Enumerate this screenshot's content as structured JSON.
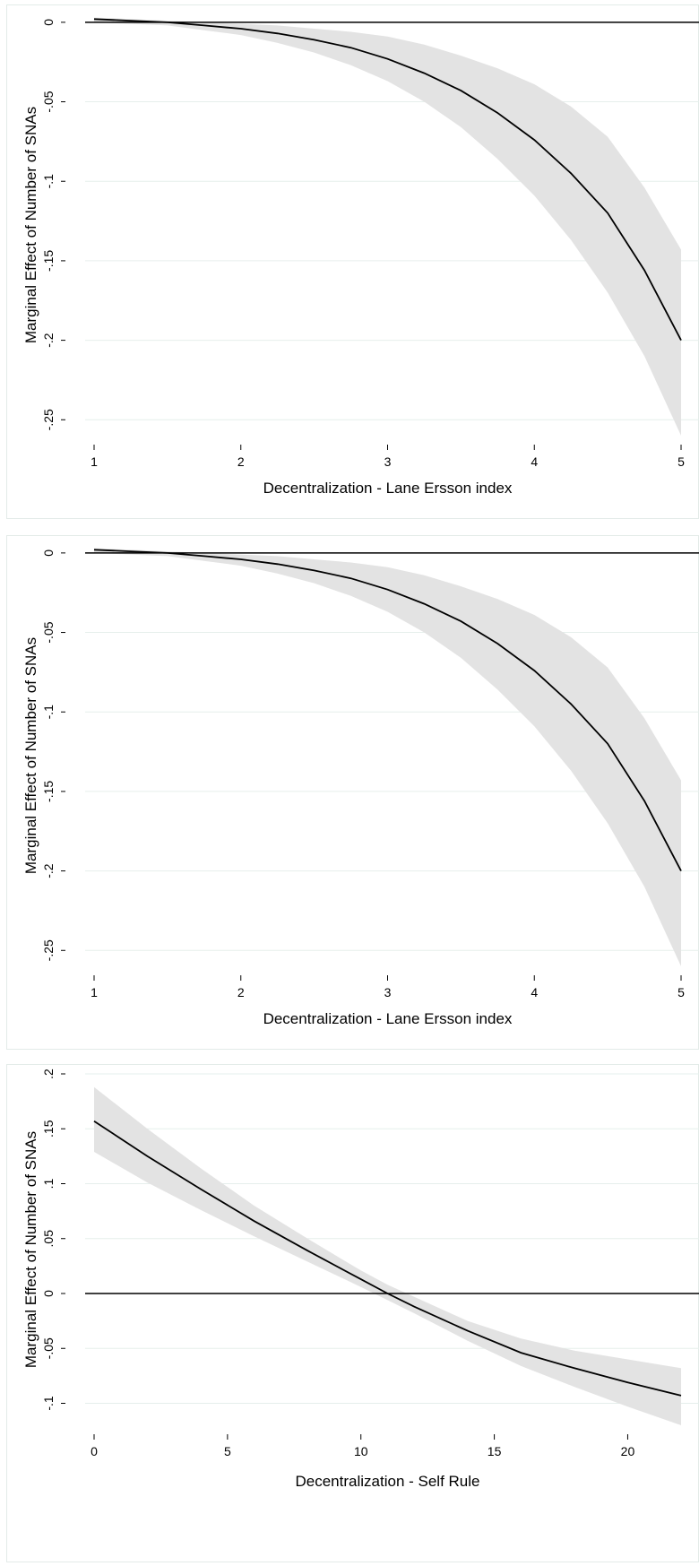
{
  "chart_data": [
    {
      "type": "line",
      "xlabel": "Decentralization - Lane Ersson index",
      "ylabel": "Marginal Effect of Number of SNAs",
      "xlim": [
        1,
        5
      ],
      "ylim": [
        -0.26,
        0.005
      ],
      "xticks": [
        1,
        2,
        3,
        4,
        5
      ],
      "xtick_labels": [
        "1",
        "2",
        "3",
        "4",
        "5"
      ],
      "yticks": [
        0,
        -0.05,
        -0.1,
        -0.15,
        -0.2,
        -0.25
      ],
      "ytick_labels": [
        "0",
        "-.05",
        "-.1",
        "-.15",
        "-.2",
        "-.25"
      ],
      "grid": "horizontal",
      "reference_line": 0,
      "x": [
        1,
        1.25,
        1.5,
        1.75,
        2,
        2.25,
        2.5,
        2.75,
        3,
        3.25,
        3.5,
        3.75,
        4,
        4.25,
        4.5,
        4.75,
        5
      ],
      "estimate": [
        0.002,
        0.001,
        0.0,
        -0.002,
        -0.004,
        -0.007,
        -0.011,
        -0.016,
        -0.023,
        -0.032,
        -0.043,
        -0.057,
        -0.074,
        -0.095,
        -0.12,
        -0.156,
        -0.2
      ],
      "ci_lower": [
        0.0,
        -0.001,
        -0.002,
        -0.005,
        -0.008,
        -0.013,
        -0.019,
        -0.027,
        -0.037,
        -0.05,
        -0.066,
        -0.086,
        -0.109,
        -0.137,
        -0.17,
        -0.21,
        -0.26
      ],
      "ci_upper": [
        0.003,
        0.002,
        0.001,
        0.0,
        -0.001,
        -0.002,
        -0.004,
        -0.006,
        -0.009,
        -0.014,
        -0.021,
        -0.029,
        -0.039,
        -0.053,
        -0.072,
        -0.104,
        -0.143
      ]
    },
    {
      "type": "line",
      "xlabel": "Decentralization - Lane Ersson index",
      "ylabel": "Marginal Effect of Number of SNAs",
      "xlim": [
        1,
        5
      ],
      "ylim": [
        -0.26,
        0.005
      ],
      "xticks": [
        1,
        2,
        3,
        4,
        5
      ],
      "xtick_labels": [
        "1",
        "2",
        "3",
        "4",
        "5"
      ],
      "yticks": [
        0,
        -0.05,
        -0.1,
        -0.15,
        -0.2,
        -0.25
      ],
      "ytick_labels": [
        "0",
        "-.05",
        "-.1",
        "-.15",
        "-.2",
        "-.25"
      ],
      "grid": "horizontal",
      "reference_line": 0,
      "x": [
        1,
        1.25,
        1.5,
        1.75,
        2,
        2.25,
        2.5,
        2.75,
        3,
        3.25,
        3.5,
        3.75,
        4,
        4.25,
        4.5,
        4.75,
        5
      ],
      "estimate": [
        0.002,
        0.001,
        0.0,
        -0.002,
        -0.004,
        -0.007,
        -0.011,
        -0.016,
        -0.023,
        -0.032,
        -0.043,
        -0.057,
        -0.074,
        -0.095,
        -0.12,
        -0.156,
        -0.2
      ],
      "ci_lower": [
        0.0,
        -0.001,
        -0.002,
        -0.005,
        -0.008,
        -0.013,
        -0.019,
        -0.027,
        -0.037,
        -0.05,
        -0.066,
        -0.086,
        -0.109,
        -0.137,
        -0.17,
        -0.21,
        -0.26
      ],
      "ci_upper": [
        0.003,
        0.002,
        0.001,
        0.0,
        -0.001,
        -0.002,
        -0.004,
        -0.006,
        -0.009,
        -0.014,
        -0.021,
        -0.029,
        -0.039,
        -0.053,
        -0.072,
        -0.104,
        -0.143
      ]
    },
    {
      "type": "line",
      "xlabel": "Decentralization - Self Rule",
      "ylabel": "Marginal Effect of Number of SNAs",
      "xlim": [
        0,
        22
      ],
      "ylim": [
        -0.12,
        0.2
      ],
      "xticks": [
        0,
        5,
        10,
        15,
        20
      ],
      "xtick_labels": [
        "0",
        "5",
        "10",
        "15",
        "20"
      ],
      "yticks": [
        0.2,
        0.15,
        0.1,
        0.05,
        0,
        -0.05,
        -0.1
      ],
      "ytick_labels": [
        ".2",
        ".15",
        ".1",
        ".05",
        "0",
        "-.05",
        "-.1"
      ],
      "grid": "horizontal",
      "reference_line": 0,
      "x": [
        0,
        2,
        4,
        6,
        8,
        10,
        11,
        12,
        14,
        16,
        18,
        20,
        22
      ],
      "estimate": [
        0.157,
        0.125,
        0.095,
        0.066,
        0.039,
        0.013,
        0.0,
        -0.012,
        -0.034,
        -0.054,
        -0.068,
        -0.081,
        -0.093
      ],
      "ci_lower": [
        0.129,
        0.101,
        0.076,
        0.052,
        0.029,
        0.006,
        -0.006,
        -0.018,
        -0.043,
        -0.066,
        -0.085,
        -0.103,
        -0.12
      ],
      "ci_upper": [
        0.188,
        0.15,
        0.114,
        0.08,
        0.05,
        0.021,
        0.008,
        -0.003,
        -0.025,
        -0.041,
        -0.052,
        -0.06,
        -0.068
      ]
    }
  ]
}
